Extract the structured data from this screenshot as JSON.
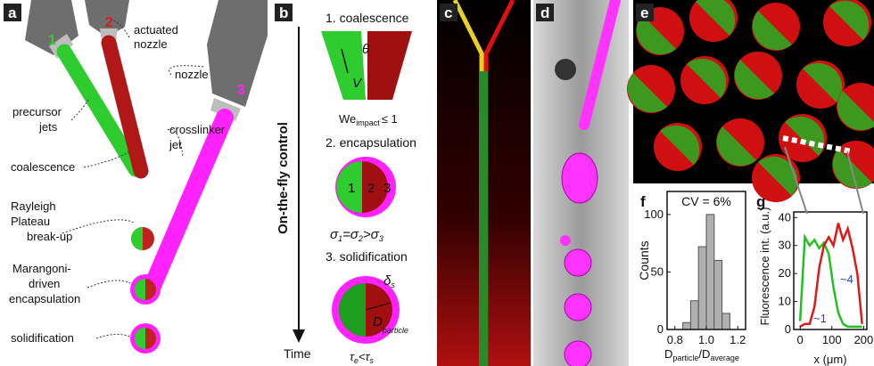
{
  "panel_a": {
    "label": "a",
    "jet_1": "1",
    "jet_2": "2",
    "jet_3": "3",
    "actuated_nozzle": [
      "actuated",
      "nozzle"
    ],
    "nozzle": "nozzle",
    "precursor_jets": [
      "precursor",
      "jets"
    ],
    "crosslinker_jet": [
      "crosslinker",
      "jet"
    ],
    "coalescence": "coalescence",
    "breakup": [
      "Rayleigh",
      "Plateau",
      "break-up"
    ],
    "encapsulation": [
      "Marangoni-",
      "driven",
      "encapsulation"
    ],
    "solidification": "solidification"
  },
  "panel_b": {
    "label": "b",
    "axis": "On-the-fly control",
    "time": "Time",
    "step_1": "1. coalescence",
    "theta": "θ",
    "velocity": "V",
    "weber": [
      "We",
      "impact",
      "≤ 1"
    ],
    "step_2": "2. encapsulation",
    "regions": [
      "1",
      "2",
      "3"
    ],
    "sigma": [
      "σ",
      "1",
      "=σ",
      "2",
      ">σ",
      "3"
    ],
    "step_3": "3. solidification",
    "delta": [
      "δ",
      "s"
    ],
    "diameter": [
      "D",
      "particle"
    ],
    "tau": [
      "τ",
      "e",
      "<τ",
      "s"
    ]
  },
  "panel_c": {
    "label": "c"
  },
  "panel_d": {
    "label": "d"
  },
  "panel_e": {
    "label": "e"
  },
  "panel_f": {
    "label": "f",
    "type": "histogram",
    "annotation": "CV = 6%",
    "ylabel": "Counts",
    "xlabel": [
      "D",
      "particle",
      "/D",
      "average"
    ],
    "bins": [
      0.85,
      0.9,
      0.95,
      1.0,
      1.05,
      1.1,
      1.15
    ],
    "counts": [
      6,
      25,
      72,
      100,
      60,
      14
    ],
    "xlim": [
      0.75,
      1.25
    ],
    "xticks": [
      0.8,
      {
        "value": 1.0,
        "label": "1.0"
      },
      1.2
    ],
    "ylim": [
      0,
      120
    ],
    "yticks": [
      0,
      50,
      100
    ],
    "color": "#b0b0b0"
  },
  "panel_g": {
    "label": "g",
    "type": "line",
    "ylabel": "Fluorescence int. (a.u.)",
    "xlabel": "x (μm)",
    "x": [
      0,
      15,
      30,
      45,
      60,
      75,
      90,
      105,
      120,
      135,
      150,
      165,
      180,
      195
    ],
    "series": [
      {
        "color": "#22c022",
        "values": [
          3,
          33,
          30,
          32,
          29,
          31,
          27,
          15,
          6,
          2,
          1,
          1,
          1,
          1
        ]
      },
      {
        "color": "#e01818",
        "values": [
          1,
          2,
          2,
          8,
          22,
          30,
          33,
          30,
          38,
          32,
          36,
          29,
          20,
          2
        ]
      }
    ],
    "xlim": [
      -20,
      210
    ],
    "xticks": [
      0,
      100,
      200
    ],
    "ylim": [
      0,
      42
    ],
    "yticks": [
      0,
      10,
      20,
      30,
      40
    ],
    "annotations": [
      "~4",
      "~1"
    ]
  }
}
